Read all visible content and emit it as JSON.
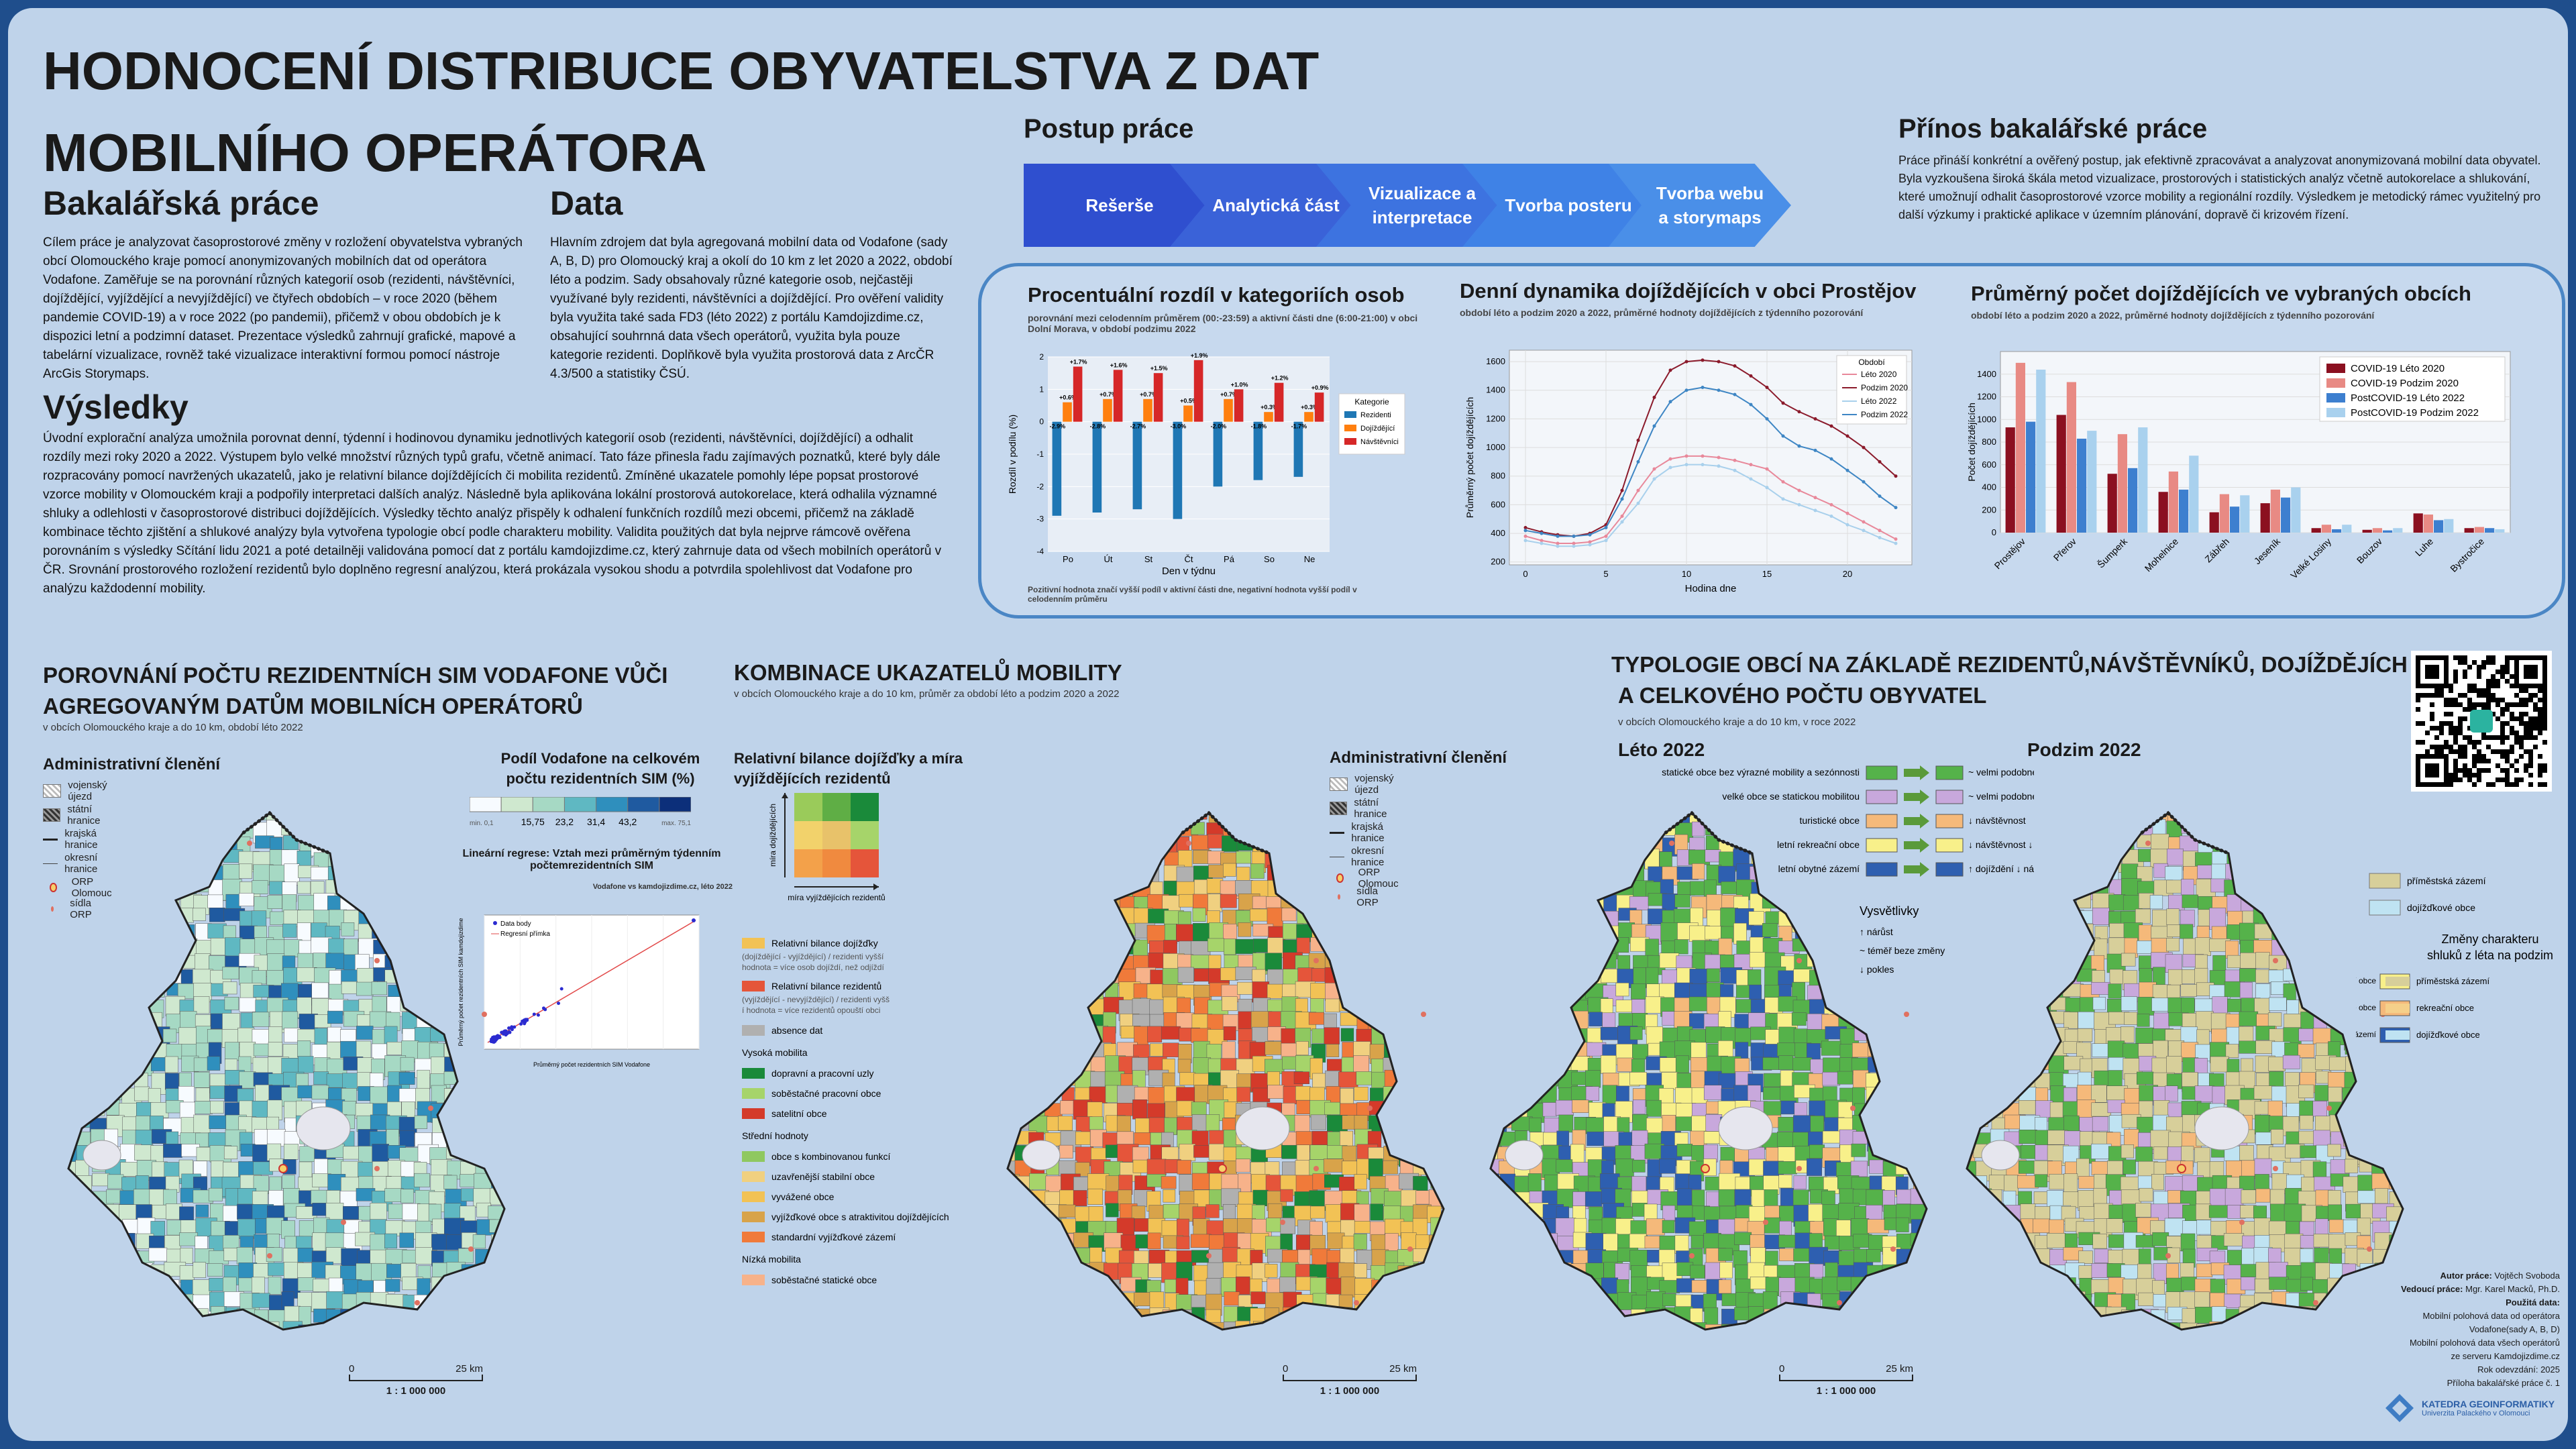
{
  "title_line1": "HODNOCENÍ DISTRIBUCE OBYVATELSTVA Z DAT",
  "title_line2": "MOBILNÍHO OPERÁTORA",
  "bakalarska": {
    "heading": "Bakalářská práce",
    "text": "Cílem práce je analyzovat časoprostorové změny v rozložení obyvatelstva vybraných obcí Olomouckého kraje pomocí anonymizovaných mobilních dat od operátora Vodafone. Zaměřuje se na porovnání různých kategorií osob (rezidenti, návštěvníci, dojíždějící, vyjíždějící a nevyjíždějící) ve čtyřech obdobích – v roce 2020 (během pandemie COVID-19) a v roce 2022 (po pandemii), přičemž v obou obdobích je k dispozici letní a podzimní dataset. Prezentace výsledků zahrnují grafické, mapové a tabelární vizualizace, rovněž také vizualizace interaktivní formou pomocí nástroje ArcGis Storymaps."
  },
  "data_section": {
    "heading": "Data",
    "text": "Hlavním zdrojem dat byla agregovaná mobilní data od Vodafone (sady A, B, D) pro Olomoucký kraj a okolí do 10 km z let 2020 a 2022, období léto a podzim. Sady obsahovaly různé kategorie osob, nejčastěji využívané byly rezidenti, návštěvníci a dojíždějící. Pro ověření validity byla využita také sada FD3 (léto 2022) z portálu Kamdojizdime.cz, obsahující souhrnná data všech operátorů, využita byla pouze kategorie rezidenti. Doplňkově byla využita prostorová data z ArcČR 4.3/500 a statistiky ČSÚ."
  },
  "vysledky": {
    "heading": "Výsledky",
    "text": "Úvodní explorační analýza umožnila porovnat denní, týdenní i hodinovou dynamiku jednotlivých kategorií osob (rezidenti, návštěvníci, dojíždějící) a odhalit rozdíly mezi roky 2020 a 2022. Výstupem bylo velké množství různých typů grafu, včetně animací. Tato fáze přinesla řadu zajímavých poznatků, které byly dále rozpracovány pomocí navržených ukazatelů, jako je relativní bilance dojíždějících či mobilita rezidentů. Zmíněné ukazatele pomohly lépe popsat prostorové vzorce mobility v Olomouckém kraji a podpořily interpretaci dalších analýz. Následně byla aplikována lokální prostorová autokorelace, která odhalila významné shluky a odlehlosti v časoprostorové distribuci dojíždějících. Výsledky těchto analýz přispěly k odhalení funkčních rozdílů mezi obcemi, přičemž na základě kombinace těchto zjištění a shlukové analýzy byla vytvořena typologie obcí podle charakteru mobility. Validita použitých dat byla nejprve rámcově ověřena porovnáním s výsledky Sčítání lidu 2021 a poté detailněji validována pomocí dat z portálu kamdojizdime.cz, který zahrnuje data od všech mobilních operátorů v ČR. Srovnání prostorového rozložení rezidentů bylo doplněno regresní analýzou, která prokázala vysokou shodu a potvrdila spolehlivost dat Vodafone pro analýzu každodenní mobility."
  },
  "postup": {
    "heading": "Postup práce",
    "steps": [
      "Rešerše",
      "Analytická část",
      "Vizualizace a interpretace",
      "Tvorba posteru",
      "Tvorba webu a storymaps"
    ],
    "colors": [
      "#2f4fcf",
      "#3a62d8",
      "#3d73e0",
      "#3f82e6",
      "#4a8fe8"
    ]
  },
  "prinos": {
    "heading": "Přínos bakalářské práce",
    "text": "Práce přináší konkrétní a ověřený postup, jak efektivně zpracovávat a analyzovat anonymizovaná mobilní data obyvatel. Byla vyzkoušena široká škála metod vizualizace, prostorových i statistických analýz včetně autokorelace a shlukování, které umožnují odhalit časoprostorové vzorce mobility a regionální rozdíly. Výsledkem je metodický rámec využitelný pro další výzkumy i praktické aplikace v územním plánování, dopravě či krizovém řízení."
  },
  "chart1": {
    "title": "Procentuální rozdíl v kategoriích osob",
    "subtitle": "porovnání mezi celodenním průměrem (00:-23:59) a aktivní části dne (6:00-21:00) v obci Dolní Morava, v období podzimu 2022",
    "note": "Pozitivní hodnota značí vyšší podíl v aktivní části dne, negativní hodnota vyšší podíl v celodenním průměru",
    "legend_title": "Kategorie"
  },
  "chart2": {
    "title": "Denní dynamika dojíždějících v obci Prostějov",
    "subtitle": "období léto a podzim 2020 a 2022, průměrné hodnoty dojíždějících z týdenního pozorování",
    "legend_title": "Období"
  },
  "chart3": {
    "title": "Průměrný počet dojíždějících ve vybraných obcích",
    "subtitle": "období léto a podzim 2020 a 2022, průměrné hodnoty dojíždějících z týdenního pozorování"
  },
  "chart_data": [
    {
      "type": "bar",
      "categories": [
        "Po",
        "Út",
        "St",
        "Čt",
        "Pá",
        "So",
        "Ne"
      ],
      "xlabel": "Den v týdnu",
      "ylabel": "Rozdíl v podílu (%)",
      "ylim": [
        -4,
        2
      ],
      "yticks": [
        -4,
        -3,
        -2,
        -1,
        0,
        1,
        2
      ],
      "series": [
        {
          "name": "Rezidenti",
          "color": "#1f77b4",
          "values": [
            -2.9,
            -2.8,
            -2.7,
            -3.0,
            -2.0,
            -1.8,
            -1.7
          ],
          "labels": [
            "-2.9%",
            "-2.8%",
            "-2.7%",
            "-3.0%",
            "-2.0%",
            "-1.8%",
            "-1.7%"
          ]
        },
        {
          "name": "Dojíždějící",
          "color": "#ff7f0e",
          "values": [
            0.6,
            0.7,
            0.7,
            0.5,
            0.7,
            0.3,
            0.3
          ],
          "labels": [
            "+0.6%",
            "+0.7%",
            "+0.7%",
            "+0.5%",
            "+0.7%",
            "+0.3%",
            "+0.3%"
          ]
        },
        {
          "name": "Návštěvníci",
          "color": "#d62728",
          "values": [
            1.7,
            1.6,
            1.5,
            1.9,
            1.0,
            1.2,
            0.9
          ],
          "labels": [
            "+1.7%",
            "+1.6%",
            "+1.5%",
            "+1.9%",
            "+1.0%",
            "+1.2%",
            "+0.9%"
          ]
        }
      ]
    },
    {
      "type": "line",
      "x": [
        0,
        1,
        2,
        3,
        4,
        5,
        6,
        7,
        8,
        9,
        10,
        11,
        12,
        13,
        14,
        15,
        16,
        17,
        18,
        19,
        20,
        21,
        22,
        23
      ],
      "xlabel": "Hodina dne",
      "ylabel": "Průměrný počet dojíždějících",
      "xlim": [
        -1,
        24
      ],
      "ylim": [
        180,
        1680
      ],
      "xticks": [
        0,
        5,
        10,
        15,
        20
      ],
      "yticks": [
        200,
        400,
        600,
        800,
        1000,
        1200,
        1400,
        1600
      ],
      "series": [
        {
          "name": "Léto 2020",
          "color": "#e8889a",
          "values": [
            380,
            350,
            330,
            330,
            340,
            380,
            520,
            700,
            850,
            920,
            940,
            940,
            930,
            910,
            880,
            850,
            760,
            700,
            650,
            600,
            540,
            480,
            420,
            360
          ]
        },
        {
          "name": "Podzim 2020",
          "color": "#8b1a2b",
          "values": [
            440,
            410,
            390,
            380,
            400,
            460,
            700,
            1050,
            1350,
            1540,
            1600,
            1610,
            1600,
            1570,
            1500,
            1420,
            1310,
            1250,
            1200,
            1150,
            1080,
            1000,
            900,
            800
          ]
        },
        {
          "name": "Léto 2022",
          "color": "#a8d0ec",
          "values": [
            350,
            330,
            310,
            310,
            320,
            350,
            480,
            610,
            780,
            860,
            880,
            880,
            870,
            840,
            780,
            720,
            640,
            600,
            560,
            520,
            460,
            420,
            370,
            330
          ]
        },
        {
          "name": "Podzim 2022",
          "color": "#3e86c4",
          "values": [
            420,
            400,
            380,
            380,
            390,
            440,
            640,
            900,
            1150,
            1320,
            1400,
            1420,
            1400,
            1370,
            1300,
            1200,
            1080,
            1010,
            980,
            920,
            840,
            760,
            660,
            580
          ]
        }
      ]
    },
    {
      "type": "bar",
      "categories": [
        "Prostějov",
        "Přerov",
        "Šumperk",
        "Mohelnice",
        "Zábřeh",
        "Jeseník",
        "Velké Losiny",
        "Bouzov",
        "Luhe",
        "Bystročice"
      ],
      "ylabel": "Počet dojíždějících",
      "ylim": [
        0,
        1600
      ],
      "yticks": [
        0,
        200,
        400,
        600,
        800,
        1000,
        1200,
        1400
      ],
      "series": [
        {
          "name": "COVID-19 Léto 2020",
          "color": "#8b1020",
          "values": [
            930,
            1040,
            520,
            360,
            180,
            260,
            40,
            25,
            170,
            40
          ]
        },
        {
          "name": "COVID-19 Podzim 2020",
          "color": "#e88a84",
          "values": [
            1500,
            1330,
            870,
            540,
            340,
            380,
            70,
            40,
            160,
            50
          ]
        },
        {
          "name": "PostCOVID-19 Léto 2022",
          "color": "#3d7fcf",
          "values": [
            980,
            830,
            570,
            380,
            230,
            310,
            30,
            20,
            110,
            40
          ]
        },
        {
          "name": "PostCOVID-19 Podzim 2022",
          "color": "#a9d1ee",
          "values": [
            1440,
            900,
            930,
            680,
            330,
            400,
            70,
            40,
            120,
            30
          ]
        }
      ]
    }
  ],
  "section_left": {
    "title": "POROVNÁNÍ POČTU REZIDENTNÍCH SIM VODAFONE VŮČI AGREGOVANÝM DATŮM MOBILNÍCH OPERÁTORŮ",
    "subtitle": "v obcích Olomouckého kraje a do 10 km, období léto 2022",
    "legend_title": "Administrativní členění",
    "legend": [
      "vojenský újezd",
      "státní hranice",
      "krajská hranice",
      "okresní hranice",
      "ORP Olomouc",
      "sídla ORP"
    ],
    "share_title": "Podíl Vodafone na celkovém počtu rezidentních SIM (%)",
    "share_min": "min. 0,1",
    "share_max": "max. 75,1",
    "share_breaks": [
      "15,75",
      "23,2",
      "31,4",
      "43,2"
    ],
    "share_colors": [
      "#f7fbff",
      "#cfe8cf",
      "#a6d9c4",
      "#5fb8c2",
      "#2f8fbd",
      "#1f5aa0",
      "#0c2f7a"
    ],
    "regression_title": "Lineární regrese: Vztah mezi průměrným týdenním počtemrezidentních SIM",
    "regression_subtitle": "Vodafone vs kamdojizdime.cz, léto 2022",
    "regression_legend": [
      "Data body",
      "Regresní přímka"
    ],
    "regression_xlabel": "Průměrný počet rezidentních SIM Vodafone",
    "regression_ylabel": "Průměrný počet rezidentních SIM kamdojizdime",
    "scale_label": "1 : 1 000 000",
    "scale_0": "0",
    "scale_25": "25 km"
  },
  "section_middle": {
    "title": "KOMBINACE UKAZATELŮ MOBILITY",
    "subtitle": "v obcích Olomouckého kraje a do 10 km, průměr za období léto a podzim 2020 a 2022",
    "matrix_title": "Relativní bilance dojížďky a míra vyjíždějících rezidentů",
    "matrix_ylabel": "míra dojíždějících",
    "matrix_xlabel": "míra vyjíždějících rezidentů",
    "matrix_colors": [
      "#9acb5a",
      "#5fae45",
      "#1a8a3a",
      "#f2d26b",
      "#e8c26a",
      "#a6d46a",
      "#f3a14a",
      "#f08a3f",
      "#e5553a"
    ],
    "bilance1": "Relativní bilance dojížďky",
    "bilance1_note": "(dojíždějící - vyjíždějící) / rezidenti vyšší hodnota = více osob dojíždí, než odjíždí",
    "bilance2": "Relativní bilance rezidentů",
    "bilance2_note": "(vyjíždějící - nevyjíždějící) / rezidenti vyšší hodnota = více rezidentů opouští obci",
    "absence": "absence dat",
    "groups": [
      {
        "name": "Vysoká mobilita",
        "items": [
          [
            "dopravní a pracovní uzly",
            "#1a8a3a"
          ],
          [
            "soběstačné pracovní obce",
            "#a6d46a"
          ],
          [
            "satelitní obce",
            "#d43a2a"
          ]
        ]
      },
      {
        "name": "Střední hodnoty",
        "items": [
          [
            "obce s kombinovanou funkcí",
            "#8fc860"
          ],
          [
            "uzavřenější stabilní obce",
            "#f0d080"
          ],
          [
            "vyvážené obce",
            "#f2c255"
          ],
          [
            "vyjížďkové obce s atraktivitou dojíždějících",
            "#d8a34a"
          ],
          [
            "standardní vyjížďkové zázemí",
            "#f07a3a"
          ]
        ]
      },
      {
        "name": "Nízká mobilita",
        "items": [
          [
            "soběstačné statické obce",
            "#f7b28a"
          ]
        ]
      }
    ],
    "admin_title": "Administrativní členění",
    "admin_legend": [
      "vojenský újezd",
      "státní hranice",
      "krajská hranice",
      "okresní hranice",
      "ORP Olomouc",
      "sídla ORP"
    ],
    "scale_label": "1 : 1 000 000",
    "scale_0": "0",
    "scale_25": "25 km"
  },
  "section_right": {
    "title_line1": "TYPOLOGIE OBCÍ NA ZÁKLADĚ REZIDENTŮ,NÁVŠTĚVNÍKŮ, DOJÍŽDĚJÍCH",
    "title_line2": "A CELKOVÉHO POČTU OBYVATEL",
    "subtitle": "v obcích Olomouckého kraje a do 10 km, v roce 2022",
    "leto": "Léto 2022",
    "podzim": "Podzim 2022",
    "types": [
      {
        "label": "statické obce bez výrazné mobility a sezónnosti",
        "color": "#55b24a",
        "desc": "~ velmi podobné"
      },
      {
        "label": "velké obce se statickou mobilitou",
        "color": "#c8a8dc",
        "desc": "~ velmi podobné"
      },
      {
        "label": "turistické obce",
        "color": "#f5b97a",
        "desc": "↓ návštěvnost"
      },
      {
        "label": "letní rekreační obce",
        "color": "#f8f08a",
        "desc": "↓ návštěvnost ↓ dojíždění ↑ rezidenti"
      },
      {
        "label": "letní obytné zázemí",
        "color": "#2e5fb0",
        "desc": "↑ dojíždění ↓ návštěvnosti ↑ rezidenti"
      }
    ],
    "vysvetlivky_title": "Vysvětlivky",
    "vysvetlivky": [
      "↑  nárůst",
      "~  téměř beze změny",
      "↓  pokles"
    ],
    "autumn_types": [
      [
        "příměstská zázemí",
        "#d7cf9a"
      ],
      [
        "dojížďkové obce",
        "#bfe3f2"
      ]
    ],
    "changes_title": "Změny charakteru shluků z léta na podzim",
    "changes": [
      [
        "letní rekreační obce",
        "příměstská zázemí",
        "#f8f08a",
        "#d7cf9a"
      ],
      [
        "turistické obce",
        "rekreační obce",
        "#f5b97a",
        "#f5d08a"
      ],
      [
        "letní obytné zázemí",
        "dojížďkové obce",
        "#2e5fb0",
        "#bfe3f2"
      ]
    ],
    "scale_label": "1 : 1 000 000",
    "scale_0": "0",
    "scale_25": "25 km"
  },
  "credits": {
    "author_label": "Autor práce:",
    "author": "Vojtěch Svoboda",
    "supervisor_label": "Vedoucí práce:",
    "supervisor": "Mgr. Karel Macků, Ph.D.",
    "data_label": "Použitá data:",
    "data": [
      "Mobilní polohová data od operátora",
      "Vodafone(sady A, B, D)",
      "Mobilní polohová data všech operátorů",
      "ze serveru Kamdojizdime.cz",
      "Rok odevzdání: 2025",
      "Příloha bakalářské práce č. 1"
    ]
  },
  "logo": {
    "name": "KATEDRA GEOINFORMATIKY",
    "uni": "Univerzita Palackého v Olomouci"
  },
  "colors": {
    "poster_bg": "#bfd3ea",
    "frame": "#1f4e8c",
    "panel_border": "#4a86c5",
    "accent": "#3a62d8"
  }
}
